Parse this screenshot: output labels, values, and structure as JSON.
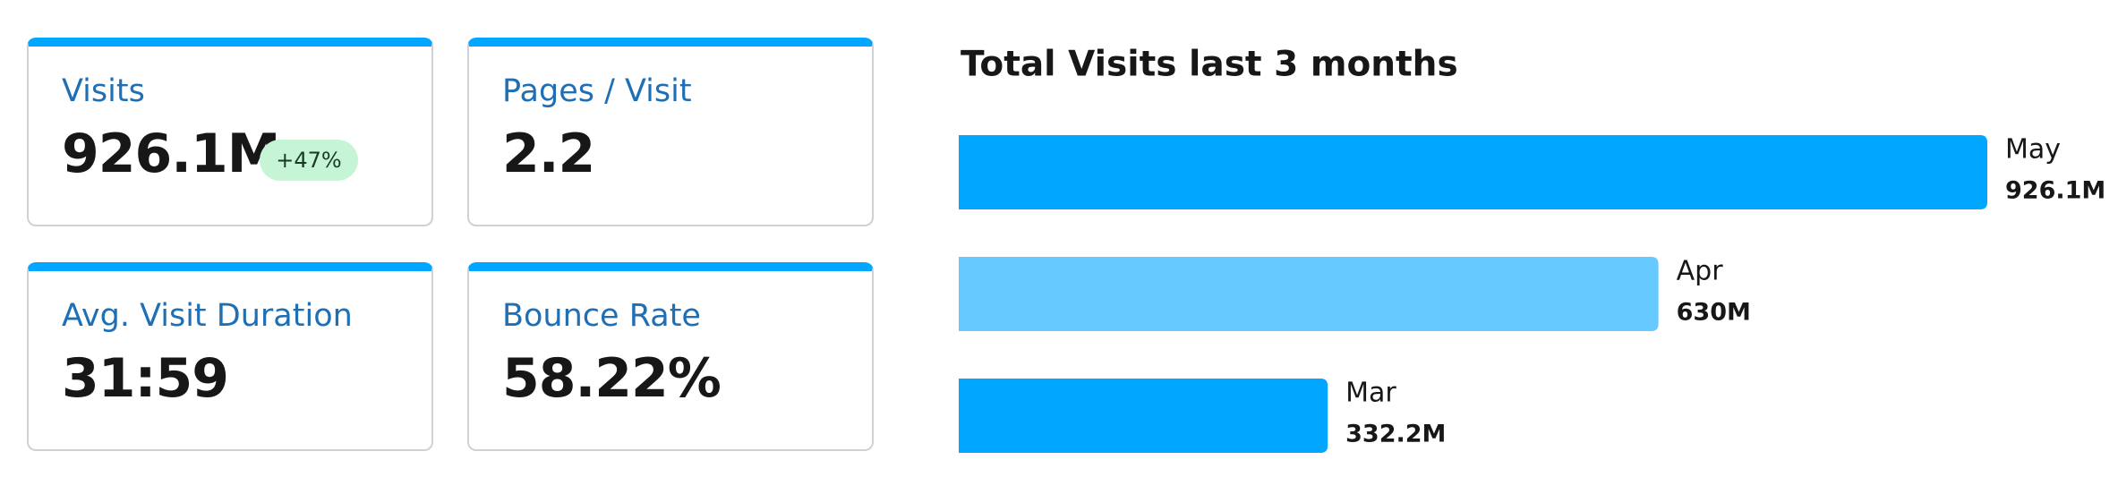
{
  "kpis": [
    {
      "label": "Visits",
      "value": "926.1M",
      "badge": "+47%"
    },
    {
      "label": "Pages / Visit",
      "value": "2.2"
    },
    {
      "label": "Avg. Visit Duration",
      "value": "31:59"
    },
    {
      "label": "Bounce Rate",
      "value": "58.22%"
    }
  ],
  "chart_data": {
    "type": "bar",
    "orientation": "horizontal",
    "title": "Total Visits last 3 months",
    "categories": [
      "May",
      "Apr",
      "Mar"
    ],
    "values": [
      926.1,
      630,
      332.2
    ],
    "value_labels": [
      "926.1M",
      "630M",
      "332.2M"
    ],
    "colors": [
      "#00a6ff",
      "#66c9ff",
      "#00a6ff"
    ]
  }
}
